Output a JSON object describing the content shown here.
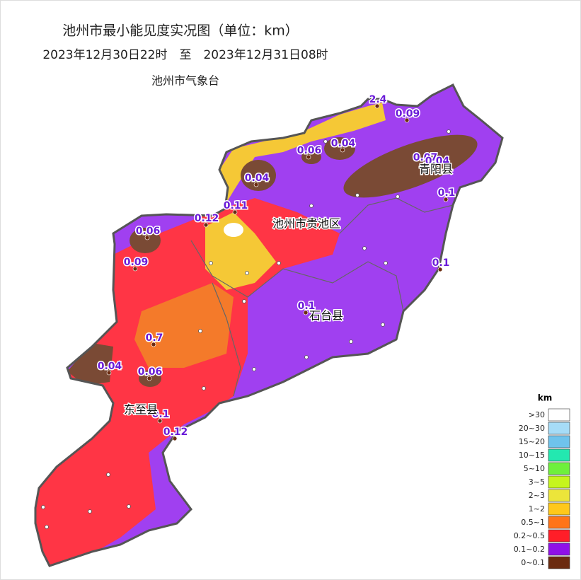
{
  "header": {
    "title": "池州市最小能见度实况图（单位：km）",
    "subtitle": "2023年12月30日22时　至　2023年12月31日08时",
    "source": "池州市气象台"
  },
  "places": [
    "池州市贵池区",
    "青阳县",
    "石台县",
    "东至县"
  ],
  "stations": [
    2.4,
    0.09,
    0.06,
    0.04,
    0.07,
    0.04,
    0.04,
    0.1,
    0.11,
    0.12,
    0.06,
    0.09,
    0.1,
    0.1,
    0.7,
    0.04,
    0.06,
    0.1,
    0.12
  ],
  "legend": {
    "title": "km",
    "items": [
      {
        "label": ">30",
        "color": "#ffffff"
      },
      {
        "label": "20~30",
        "color": "#a6dcf7"
      },
      {
        "label": "15~20",
        "color": "#6fc3ec"
      },
      {
        "label": "10~15",
        "color": "#23e8b0"
      },
      {
        "label": "5~10",
        "color": "#6ef03c"
      },
      {
        "label": "3~5",
        "color": "#c6f51e"
      },
      {
        "label": "2~3",
        "color": "#ece53a"
      },
      {
        "label": "1~2",
        "color": "#ffc81a"
      },
      {
        "label": "0.5~1",
        "color": "#ff7418"
      },
      {
        "label": "0.2~0.5",
        "color": "#ff1e28"
      },
      {
        "label": "0.1~0.2",
        "color": "#8f10e8"
      },
      {
        "label": "0~0.1",
        "color": "#6b2b10"
      }
    ]
  }
}
